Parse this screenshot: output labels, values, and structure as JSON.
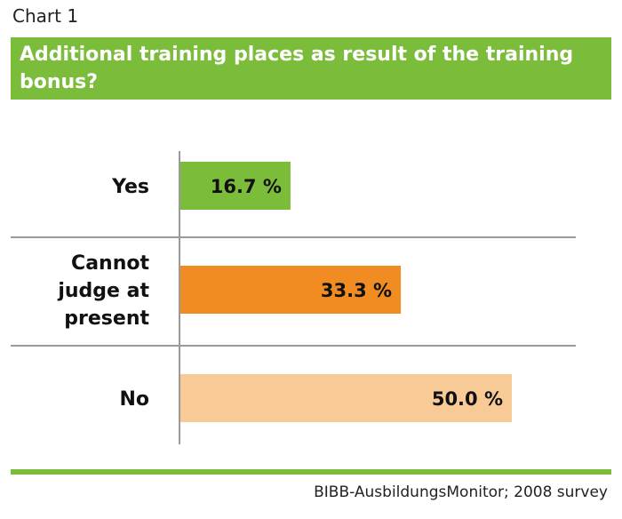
{
  "header": {
    "chart_label": "Chart 1",
    "title": "Additional training places as result of the training bonus?"
  },
  "footer": {
    "source": "BIBB-AusbildungsMonitor; 2008 survey"
  },
  "colors": {
    "brand_green": "#7bbd3a",
    "orange": "#f08c22",
    "light_orange": "#f8cb96"
  },
  "chart_data": {
    "type": "bar",
    "orientation": "horizontal",
    "title": "Additional training places as result of the training bonus?",
    "categories": [
      "Yes",
      "Cannot judge at present",
      "No"
    ],
    "category_lines": [
      [
        "Yes"
      ],
      [
        "Cannot",
        "judge at",
        "present"
      ],
      [
        "No"
      ]
    ],
    "values": [
      16.7,
      33.3,
      50.0
    ],
    "value_labels": [
      "16.7 %",
      "33.3 %",
      "50.0 %"
    ],
    "bar_colors": [
      "#7bbd3a",
      "#f08c22",
      "#f8cb96"
    ],
    "xlim": [
      0,
      60
    ],
    "unit": "%",
    "grid": false,
    "legend": "none"
  }
}
